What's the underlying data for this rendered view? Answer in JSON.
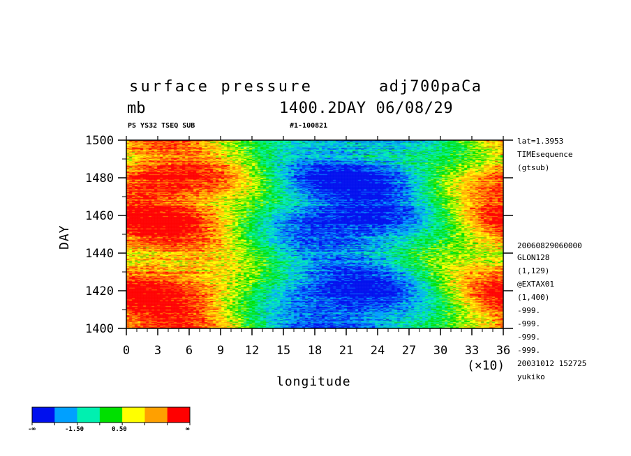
{
  "header": {
    "title_left": "surface pressure",
    "title_right": "adj700paCa",
    "units": "mb",
    "subtitle_right": "1400.2DAY 06/08/29",
    "tag_left": "PS YS32 TSEQ SUB",
    "tag_right": "#1-100821"
  },
  "side_info": {
    "top": [
      "lat=1.3953",
      "TIMEsequence",
      "(gtsub)"
    ],
    "bottom": [
      "20060829060000",
      "GLON128",
      "(1,129)",
      "@EXTAX01",
      "(1,400)",
      "-999.",
      "-999.",
      "-999.",
      "-999.",
      "20031012 152725",
      "yukiko"
    ]
  },
  "chart_data": {
    "type": "heatmap",
    "xlabel": "longitude",
    "ylabel": "DAY",
    "x_multiplier_label": "(×10)",
    "xlim": [
      0,
      36
    ],
    "ylim": [
      1400,
      1500
    ],
    "x_ticks": [
      "0",
      "3",
      "6",
      "9",
      "12",
      "15",
      "18",
      "21",
      "24",
      "27",
      "30",
      "33",
      "36"
    ],
    "y_ticks": [
      "1400",
      "1420",
      "1440",
      "1460",
      "1480",
      "1500"
    ],
    "color_levels": [
      "#0010ee",
      "#00a0ff",
      "#00f0b0",
      "#00e000",
      "#ffff00",
      "#ffa000",
      "#ff0000"
    ],
    "colorbar_labels": [
      "-∞",
      "-1.50",
      "0.50",
      "∞"
    ],
    "pattern": {
      "minima_longitude_x10": [
        21,
        21,
        22
      ],
      "maxima_longitude_x10": [
        2,
        36
      ],
      "high_days": [
        1418,
        1458,
        1480
      ],
      "low_days": [
        1437,
        1490
      ]
    }
  }
}
